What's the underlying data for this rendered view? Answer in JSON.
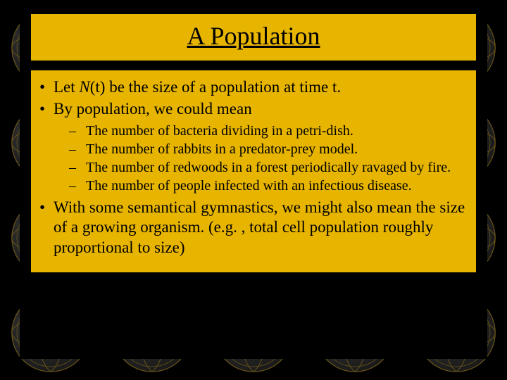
{
  "slide": {
    "title": "A Population",
    "bullets": {
      "b1_pre": "Let ",
      "b1_var": "N",
      "b1_post": "(t) be the size of a population at time t.",
      "b2": "By population, we could mean",
      "b3": "With some semantical gymnastics, we might also mean the size of a growing organism. (e.g. , total cell population roughly proportional to size)"
    },
    "sub": {
      "s1": "The number of bacteria dividing in a petri-dish.",
      "s2": "The number of rabbits in a predator-prey model.",
      "s3": "The number of redwoods in a forest periodically ravaged by fire.",
      "s4": "The number of people infected with an infectious disease."
    }
  },
  "style": {
    "background_color": "#000000",
    "panel_color": "#e7b500",
    "text_color": "#000000",
    "title_fontsize": 36,
    "bullet_fontsize": 23,
    "sub_fontsize": 20,
    "font_family": "Times New Roman",
    "globe_land": "#d4a939",
    "globe_ocean": "#1a1a1a",
    "globe_grid": "#6b5518"
  }
}
